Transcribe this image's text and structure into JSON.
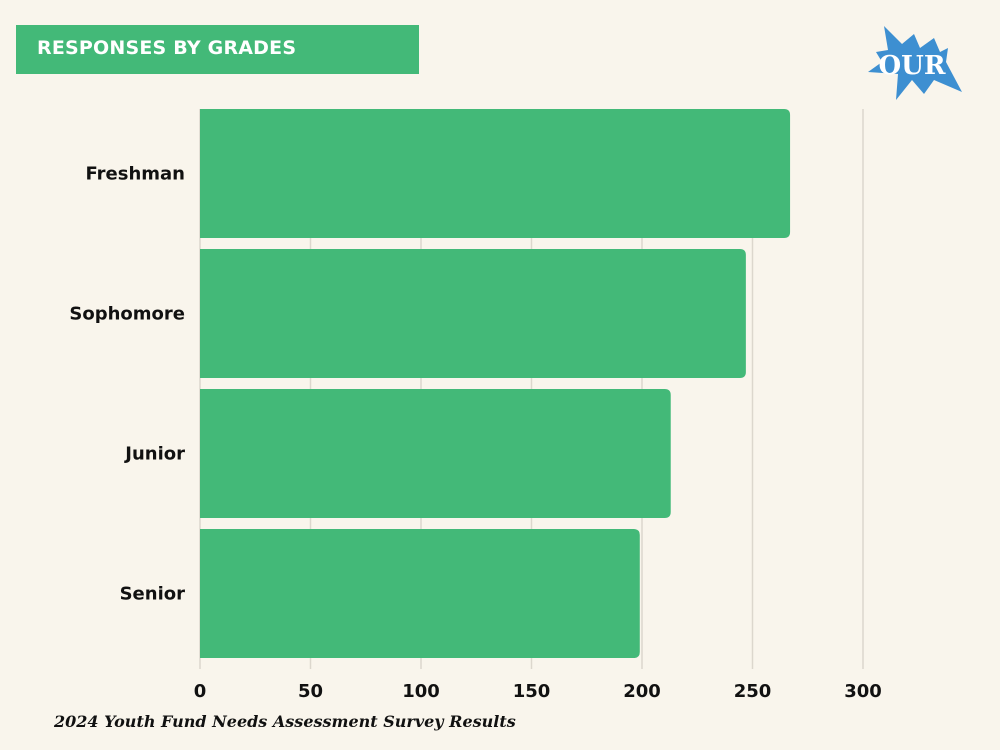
{
  "header": {
    "title": "RESPONSES BY GRADES"
  },
  "logo": {
    "text": "OUR",
    "color": "#3d8fd1"
  },
  "footer": {
    "caption": "2024 Youth Fund Needs Assessment Survey Results"
  },
  "colors": {
    "bar": "#43b978",
    "background": "#f9f5ec",
    "grid": "#dcd7cd"
  },
  "chart_data": {
    "type": "bar",
    "orientation": "horizontal",
    "title": "RESPONSES BY GRADES",
    "categories": [
      "Freshman",
      "Sophomore",
      "Junior",
      "Senior"
    ],
    "values": [
      267,
      247,
      213,
      199
    ],
    "xlabel": "",
    "ylabel": "",
    "xlim": [
      0,
      300
    ],
    "xticks": [
      0,
      50,
      100,
      150,
      200,
      250,
      300
    ],
    "xtick_labels": [
      "0",
      "50",
      "100",
      "150",
      "200",
      "250",
      "300"
    ],
    "grid": true,
    "legend": "none"
  }
}
